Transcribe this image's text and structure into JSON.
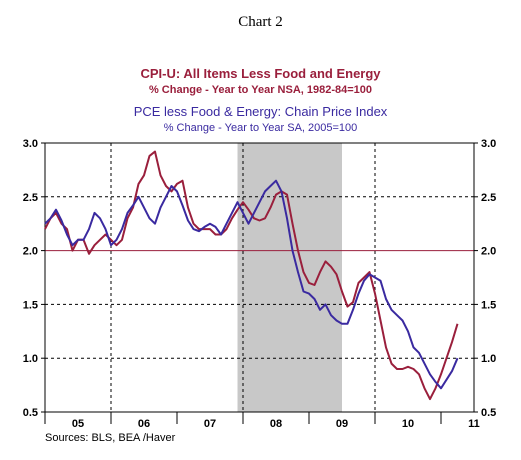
{
  "chart_title": "Chart 2",
  "sources": "Sources:  BLS, BEA /Haver",
  "chart_data": {
    "type": "line",
    "title_line1": "CPI-U: All Items Less Food and Energy",
    "title_line2": "% Change - Year to Year    NSA, 1982-84=100",
    "title_line3": "PCE less Food & Energy: Chain Price Index",
    "title_line4": "% Change - Year to Year    SA, 2005=100",
    "ylim": [
      0.5,
      3.0
    ],
    "y_ticks": [
      "3.0",
      "2.5",
      "2.0",
      "1.5",
      "1.0",
      "0.5"
    ],
    "x_range": [
      2005.0,
      2011.5
    ],
    "x_ticks": [
      "05",
      "06",
      "07",
      "08",
      "09",
      "10",
      "11"
    ],
    "recession_shading": [
      2007.917,
      2009.5
    ],
    "reference_line": 2.0,
    "series": [
      {
        "color": "#9a1f3c",
        "x": [
          2005.0,
          2005.083,
          2005.167,
          2005.25,
          2005.333,
          2005.417,
          2005.5,
          2005.583,
          2005.667,
          2005.75,
          2005.833,
          2005.917,
          2006.0,
          2006.083,
          2006.167,
          2006.25,
          2006.333,
          2006.417,
          2006.5,
          2006.583,
          2006.667,
          2006.75,
          2006.833,
          2006.917,
          2007.0,
          2007.083,
          2007.167,
          2007.25,
          2007.333,
          2007.417,
          2007.5,
          2007.583,
          2007.667,
          2007.75,
          2007.833,
          2007.917,
          2008.0,
          2008.083,
          2008.167,
          2008.25,
          2008.333,
          2008.417,
          2008.5,
          2008.583,
          2008.667,
          2008.75,
          2008.833,
          2008.917,
          2009.0,
          2009.083,
          2009.167,
          2009.25,
          2009.333,
          2009.417,
          2009.5,
          2009.583,
          2009.667,
          2009.75,
          2009.833,
          2009.917,
          2010.0,
          2010.083,
          2010.167,
          2010.25,
          2010.333,
          2010.417,
          2010.5,
          2010.583,
          2010.667,
          2010.75,
          2010.833,
          2010.917,
          2011.0,
          2011.083,
          2011.167,
          2011.25
        ],
        "y": [
          2.2,
          2.3,
          2.35,
          2.25,
          2.2,
          2.0,
          2.1,
          2.1,
          1.97,
          2.05,
          2.1,
          2.15,
          2.1,
          2.05,
          2.1,
          2.3,
          2.4,
          2.62,
          2.7,
          2.88,
          2.92,
          2.7,
          2.6,
          2.55,
          2.62,
          2.65,
          2.4,
          2.25,
          2.2,
          2.2,
          2.2,
          2.15,
          2.15,
          2.2,
          2.3,
          2.38,
          2.45,
          2.38,
          2.3,
          2.28,
          2.3,
          2.4,
          2.52,
          2.55,
          2.52,
          2.25,
          2.0,
          1.8,
          1.7,
          1.68,
          1.8,
          1.9,
          1.85,
          1.78,
          1.62,
          1.48,
          1.52,
          1.7,
          1.75,
          1.8,
          1.6,
          1.35,
          1.1,
          0.95,
          0.9,
          0.9,
          0.92,
          0.9,
          0.85,
          0.72,
          0.62,
          0.72,
          0.85,
          1.0,
          1.15,
          1.32
        ]
      },
      {
        "color": "#3a2aa0",
        "x": [
          2005.0,
          2005.083,
          2005.167,
          2005.25,
          2005.333,
          2005.417,
          2005.5,
          2005.583,
          2005.667,
          2005.75,
          2005.833,
          2005.917,
          2006.0,
          2006.083,
          2006.167,
          2006.25,
          2006.333,
          2006.417,
          2006.5,
          2006.583,
          2006.667,
          2006.75,
          2006.833,
          2006.917,
          2007.0,
          2007.083,
          2007.167,
          2007.25,
          2007.333,
          2007.417,
          2007.5,
          2007.583,
          2007.667,
          2007.75,
          2007.833,
          2007.917,
          2008.0,
          2008.083,
          2008.167,
          2008.25,
          2008.333,
          2008.417,
          2008.5,
          2008.583,
          2008.667,
          2008.75,
          2008.833,
          2008.917,
          2009.0,
          2009.083,
          2009.167,
          2009.25,
          2009.333,
          2009.417,
          2009.5,
          2009.583,
          2009.667,
          2009.75,
          2009.833,
          2009.917,
          2010.0,
          2010.083,
          2010.167,
          2010.25,
          2010.333,
          2010.417,
          2010.5,
          2010.583,
          2010.667,
          2010.75,
          2010.833,
          2010.917,
          2011.0,
          2011.083,
          2011.167,
          2011.25
        ],
        "y": [
          2.25,
          2.3,
          2.38,
          2.28,
          2.15,
          2.05,
          2.1,
          2.1,
          2.2,
          2.35,
          2.3,
          2.2,
          2.05,
          2.1,
          2.2,
          2.35,
          2.42,
          2.5,
          2.4,
          2.3,
          2.25,
          2.4,
          2.5,
          2.6,
          2.55,
          2.42,
          2.28,
          2.2,
          2.18,
          2.22,
          2.25,
          2.22,
          2.15,
          2.25,
          2.35,
          2.45,
          2.35,
          2.25,
          2.35,
          2.45,
          2.55,
          2.6,
          2.65,
          2.55,
          2.3,
          2.0,
          1.8,
          1.62,
          1.6,
          1.55,
          1.45,
          1.5,
          1.4,
          1.35,
          1.32,
          1.32,
          1.45,
          1.6,
          1.72,
          1.78,
          1.75,
          1.72,
          1.55,
          1.45,
          1.4,
          1.35,
          1.25,
          1.1,
          1.05,
          0.95,
          0.85,
          0.78,
          0.72,
          0.8,
          0.88,
          1.0
        ]
      }
    ]
  }
}
